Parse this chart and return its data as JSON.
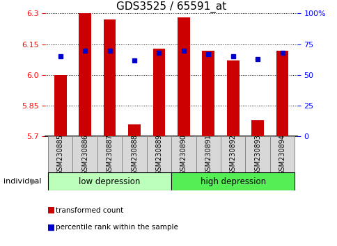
{
  "title": "GDS3525 / 65591_at",
  "samples": [
    "GSM230885",
    "GSM230886",
    "GSM230887",
    "GSM230888",
    "GSM230889",
    "GSM230890",
    "GSM230891",
    "GSM230892",
    "GSM230893",
    "GSM230894"
  ],
  "bar_values": [
    6.0,
    6.3,
    6.27,
    5.76,
    6.13,
    6.28,
    6.12,
    6.07,
    5.78,
    6.12
  ],
  "percentile_values": [
    65,
    70,
    70,
    62,
    68,
    70,
    67,
    65,
    63,
    68
  ],
  "baseline": 5.7,
  "ymin": 5.7,
  "ymax": 6.3,
  "bar_color": "#cc0000",
  "marker_color": "#0000cc",
  "group1_label": "low depression",
  "group2_label": "high depression",
  "group1_color": "#bbffbb",
  "group2_color": "#55ee55",
  "yticks_left": [
    5.7,
    5.85,
    6.0,
    6.15,
    6.3
  ],
  "yticks_right": [
    0,
    25,
    50,
    75,
    100
  ],
  "legend_bar_label": "transformed count",
  "legend_marker_label": "percentile rank within the sample",
  "individual_label": "individual",
  "background_color": "#ffffff",
  "title_fontsize": 11,
  "tick_fontsize": 8,
  "label_fontsize": 8.5,
  "sample_box_color": "#d8d8d8",
  "sample_box_edge": "#888888"
}
